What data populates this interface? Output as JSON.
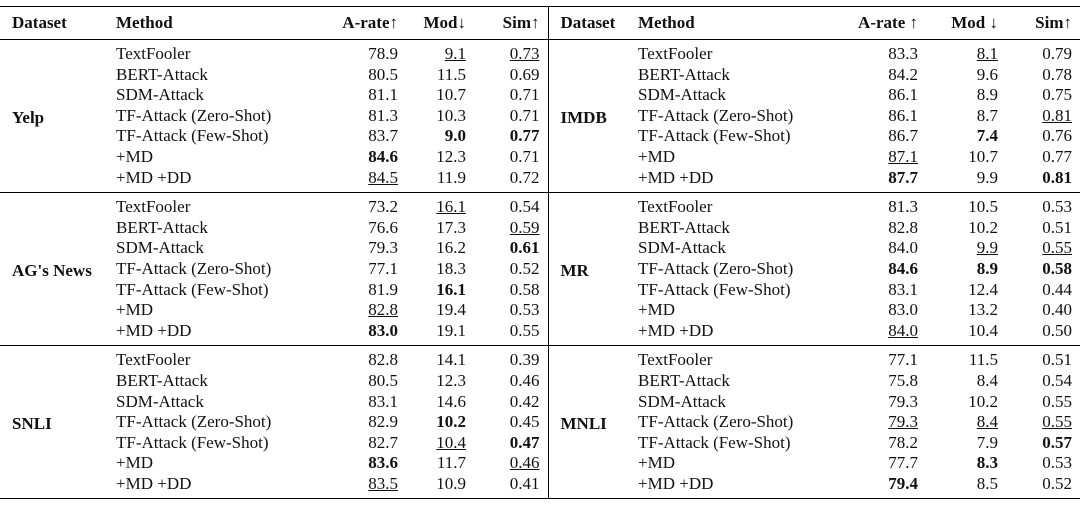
{
  "table": {
    "header": [
      "Dataset",
      "Method",
      "A-rate↑",
      "Mod↓",
      "Sim↑",
      "Dataset",
      "Method",
      "A-rate ↑",
      "Mod ↓",
      "Sim↑"
    ],
    "blocks": [
      {
        "left": {
          "dataset": "Yelp",
          "rows": [
            {
              "method": "TextFooler",
              "values": [
                "78.9",
                "9.1",
                "0.73"
              ],
              "underline": [
                1,
                2
              ]
            },
            {
              "method": "BERT-Attack",
              "values": [
                "80.5",
                "11.5",
                "0.69"
              ]
            },
            {
              "method": "SDM-Attack",
              "values": [
                "81.1",
                "10.7",
                "0.71"
              ]
            },
            {
              "method": "TF-Attack (Zero-Shot)",
              "values": [
                "81.3",
                "10.3",
                "0.71"
              ]
            },
            {
              "method": "TF-Attack (Few-Shot)",
              "values": [
                "83.7",
                "9.0",
                "0.77"
              ],
              "bold": [
                1,
                2
              ]
            },
            {
              "method": "+MD",
              "values": [
                "84.6",
                "12.3",
                "0.71"
              ],
              "bold": [
                0
              ]
            },
            {
              "method": "+MD +DD",
              "values": [
                "84.5",
                "11.9",
                "0.72"
              ],
              "underline": [
                0
              ]
            }
          ]
        },
        "right": {
          "dataset": "IMDB",
          "rows": [
            {
              "method": "TextFooler",
              "values": [
                "83.3",
                "8.1",
                "0.79"
              ],
              "underline": [
                1
              ]
            },
            {
              "method": "BERT-Attack",
              "values": [
                "84.2",
                "9.6",
                "0.78"
              ]
            },
            {
              "method": "SDM-Attack",
              "values": [
                "86.1",
                "8.9",
                "0.75"
              ]
            },
            {
              "method": "TF-Attack (Zero-Shot)",
              "values": [
                "86.1",
                "8.7",
                "0.81"
              ],
              "underline": [
                2
              ]
            },
            {
              "method": "TF-Attack (Few-Shot)",
              "values": [
                "86.7",
                "7.4",
                "0.76"
              ],
              "bold": [
                1
              ]
            },
            {
              "method": "+MD",
              "values": [
                "87.1",
                "10.7",
                "0.77"
              ],
              "underline": [
                0
              ]
            },
            {
              "method": "+MD +DD",
              "values": [
                "87.7",
                "9.9",
                "0.81"
              ],
              "bold": [
                0,
                2
              ]
            }
          ]
        }
      },
      {
        "left": {
          "dataset": "AG's News",
          "rows": [
            {
              "method": "TextFooler",
              "values": [
                "73.2",
                "16.1",
                "0.54"
              ],
              "underline": [
                1
              ]
            },
            {
              "method": "BERT-Attack",
              "values": [
                "76.6",
                "17.3",
                "0.59"
              ],
              "underline": [
                2
              ]
            },
            {
              "method": "SDM-Attack",
              "values": [
                "79.3",
                "16.2",
                "0.61"
              ],
              "bold": [
                2
              ]
            },
            {
              "method": "TF-Attack (Zero-Shot)",
              "values": [
                "77.1",
                "18.3",
                "0.52"
              ]
            },
            {
              "method": "TF-Attack (Few-Shot)",
              "values": [
                "81.9",
                "16.1",
                "0.58"
              ],
              "bold": [
                1
              ]
            },
            {
              "method": "+MD",
              "values": [
                "82.8",
                "19.4",
                "0.53"
              ],
              "underline": [
                0
              ]
            },
            {
              "method": "+MD +DD",
              "values": [
                "83.0",
                "19.1",
                "0.55"
              ],
              "bold": [
                0
              ]
            }
          ]
        },
        "right": {
          "dataset": "MR",
          "rows": [
            {
              "method": "TextFooler",
              "values": [
                "81.3",
                "10.5",
                "0.53"
              ]
            },
            {
              "method": "BERT-Attack",
              "values": [
                "82.8",
                "10.2",
                "0.51"
              ]
            },
            {
              "method": "SDM-Attack",
              "values": [
                "84.0",
                "9.9",
                "0.55"
              ],
              "underline": [
                1,
                2
              ]
            },
            {
              "method": "TF-Attack (Zero-Shot)",
              "values": [
                "84.6",
                "8.9",
                "0.58"
              ],
              "bold": [
                0,
                1,
                2
              ]
            },
            {
              "method": "TF-Attack (Few-Shot)",
              "values": [
                "83.1",
                "12.4",
                "0.44"
              ]
            },
            {
              "method": "+MD",
              "values": [
                "83.0",
                "13.2",
                "0.40"
              ]
            },
            {
              "method": "+MD +DD",
              "values": [
                "84.0",
                "10.4",
                "0.50"
              ],
              "underline": [
                0
              ]
            }
          ]
        }
      },
      {
        "left": {
          "dataset": "SNLI",
          "rows": [
            {
              "method": "TextFooler",
              "values": [
                "82.8",
                "14.1",
                "0.39"
              ]
            },
            {
              "method": "BERT-Attack",
              "values": [
                "80.5",
                "12.3",
                "0.46"
              ]
            },
            {
              "method": "SDM-Attack",
              "values": [
                "83.1",
                "14.6",
                "0.42"
              ]
            },
            {
              "method": "TF-Attack (Zero-Shot)",
              "values": [
                "82.9",
                "10.2",
                "0.45"
              ],
              "bold": [
                1
              ]
            },
            {
              "method": "TF-Attack (Few-Shot)",
              "values": [
                "82.7",
                "10.4",
                "0.47"
              ],
              "underline": [
                1
              ],
              "bold": [
                2
              ]
            },
            {
              "method": "+MD",
              "values": [
                "83.6",
                "11.7",
                "0.46"
              ],
              "bold": [
                0
              ],
              "underline": [
                2
              ]
            },
            {
              "method": "+MD +DD",
              "values": [
                "83.5",
                "10.9",
                "0.41"
              ],
              "underline": [
                0
              ]
            }
          ]
        },
        "right": {
          "dataset": "MNLI",
          "rows": [
            {
              "method": "TextFooler",
              "values": [
                "77.1",
                "11.5",
                "0.51"
              ]
            },
            {
              "method": "BERT-Attack",
              "values": [
                "75.8",
                "8.4",
                "0.54"
              ]
            },
            {
              "method": "SDM-Attack",
              "values": [
                "79.3",
                "10.2",
                "0.55"
              ]
            },
            {
              "method": "TF-Attack (Zero-Shot)",
              "values": [
                "79.3",
                "8.4",
                "0.55"
              ],
              "underline": [
                0,
                1,
                2
              ]
            },
            {
              "method": "TF-Attack (Few-Shot)",
              "values": [
                "78.2",
                "7.9",
                "0.57"
              ],
              "bold": [
                2
              ]
            },
            {
              "method": "+MD",
              "values": [
                "77.7",
                "8.3",
                "0.53"
              ],
              "bold": [
                1
              ]
            },
            {
              "method": "+MD +DD",
              "values": [
                "79.4",
                "8.5",
                "0.52"
              ],
              "bold": [
                0
              ]
            }
          ]
        }
      }
    ]
  }
}
